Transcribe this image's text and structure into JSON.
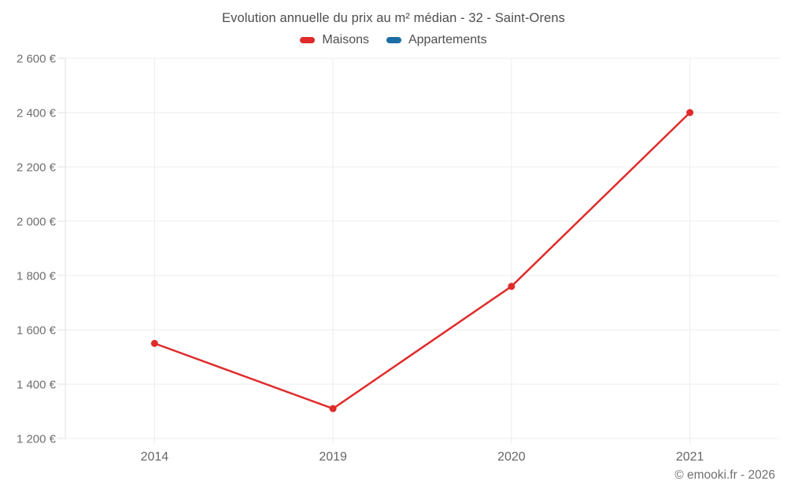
{
  "page": {
    "footer": "© emooki.fr - 2026"
  },
  "chart_data": {
    "type": "line",
    "title": "Evolution annuelle du prix au m² médian - 32 - Saint-Orens",
    "categories": [
      "2014",
      "2019",
      "2020",
      "2021"
    ],
    "series": [
      {
        "name": "Maisons",
        "color": "#e02b2b",
        "values": [
          1550,
          1310,
          1760,
          2400
        ]
      },
      {
        "name": "Appartements",
        "color": "#1c6ea4",
        "values": []
      }
    ],
    "ylim": [
      1200,
      2600
    ],
    "ytick_step": 200,
    "ytick_labels": [
      "1 200 €",
      "1 400 €",
      "1 600 €",
      "1 800 €",
      "2 000 €",
      "2 200 €",
      "2 400 €",
      "2 600 €"
    ],
    "ytick_suffix": " €",
    "xlabel": "",
    "ylabel": "",
    "grid": true,
    "legend_position": "top",
    "colors": {
      "grid_line": "#ededed",
      "axis_line": "#e0e0e0",
      "tick_label": "#6f6f6f",
      "title_text": "#4e4e4e"
    }
  }
}
